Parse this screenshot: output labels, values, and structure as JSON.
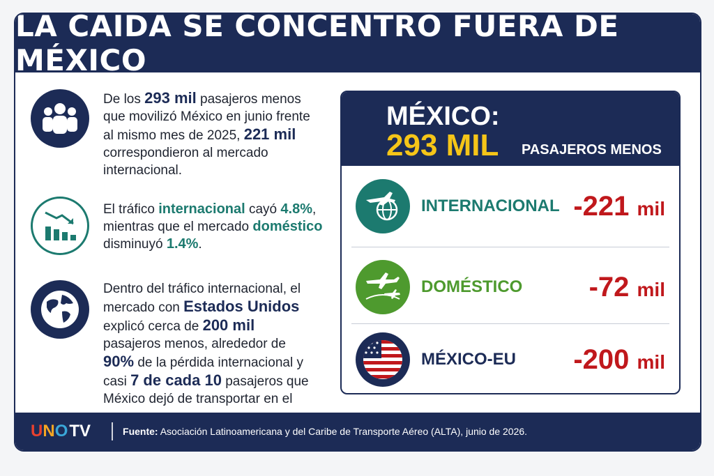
{
  "header": {
    "title": "LA CAÍDA SE CONCENTRÓ FUERA DE MÉXICO"
  },
  "points": [
    {
      "icon": "people-icon",
      "t1": "De los ",
      "b1": "293 mil",
      "t2": " pasajeros menos que movilizó México en junio frente al mismo mes de 2025, ",
      "b2": "221 mil",
      "t3": " correspondieron al mercado internacional."
    },
    {
      "icon": "chart-down-icon",
      "t1": "El tráfico ",
      "b1": "internacional",
      "t2": " cayó ",
      "b2": "4.8%",
      "t3": ", mientras que el mercado ",
      "b3": "doméstico",
      "t4": " disminuyó ",
      "b4": "1.4%",
      "t5": "."
    },
    {
      "icon": "globe-icon",
      "t1": "Dentro del tráfico internacional, el mercado con ",
      "b1": "Estados Unidos",
      "t2": " explicó cerca de ",
      "b2": "200 mil",
      "t3": " pasajeros menos, alrededor de ",
      "b3": "90%",
      "t4": " de la pérdida internacional y casi ",
      "b4": "7 de cada 10",
      "t5": " pasajeros que México dejó de transportar en el mes."
    }
  ],
  "panel": {
    "country": "MÉXICO:",
    "total": "293 MIL",
    "unit": "PASAJEROS MENOS",
    "rows": [
      {
        "label": "INTERNACIONAL",
        "value": "-221",
        "unit": "mil",
        "icon": "plane-globe-icon",
        "icon_bg": "#1c7a6f",
        "label_color": "#1c7a6f"
      },
      {
        "label": "DOMÉSTICO",
        "value": "-72",
        "unit": "mil",
        "icon": "planes-icon",
        "icon_bg": "#4e9a2e",
        "label_color": "#4e9a2e"
      },
      {
        "label": "MÉXICO-EU",
        "value": "-200",
        "unit": "mil",
        "icon": "us-flag-icon",
        "icon_bg": "#1c2b56",
        "label_color": "#1c2b56"
      }
    ]
  },
  "footer": {
    "logo": {
      "a": "U",
      "b": "N",
      "c": "O",
      "d": "TV"
    },
    "source_label": "Fuente:",
    "source_text": " Asociación Latinoamericana y del Caribe de Transporte Aéreo (ALTA), junio de 2026."
  },
  "colors": {
    "navy": "#1c2b56",
    "teal": "#1c7a6f",
    "green": "#4e9a2e",
    "red": "#c0181c",
    "yellow": "#f5c518"
  }
}
